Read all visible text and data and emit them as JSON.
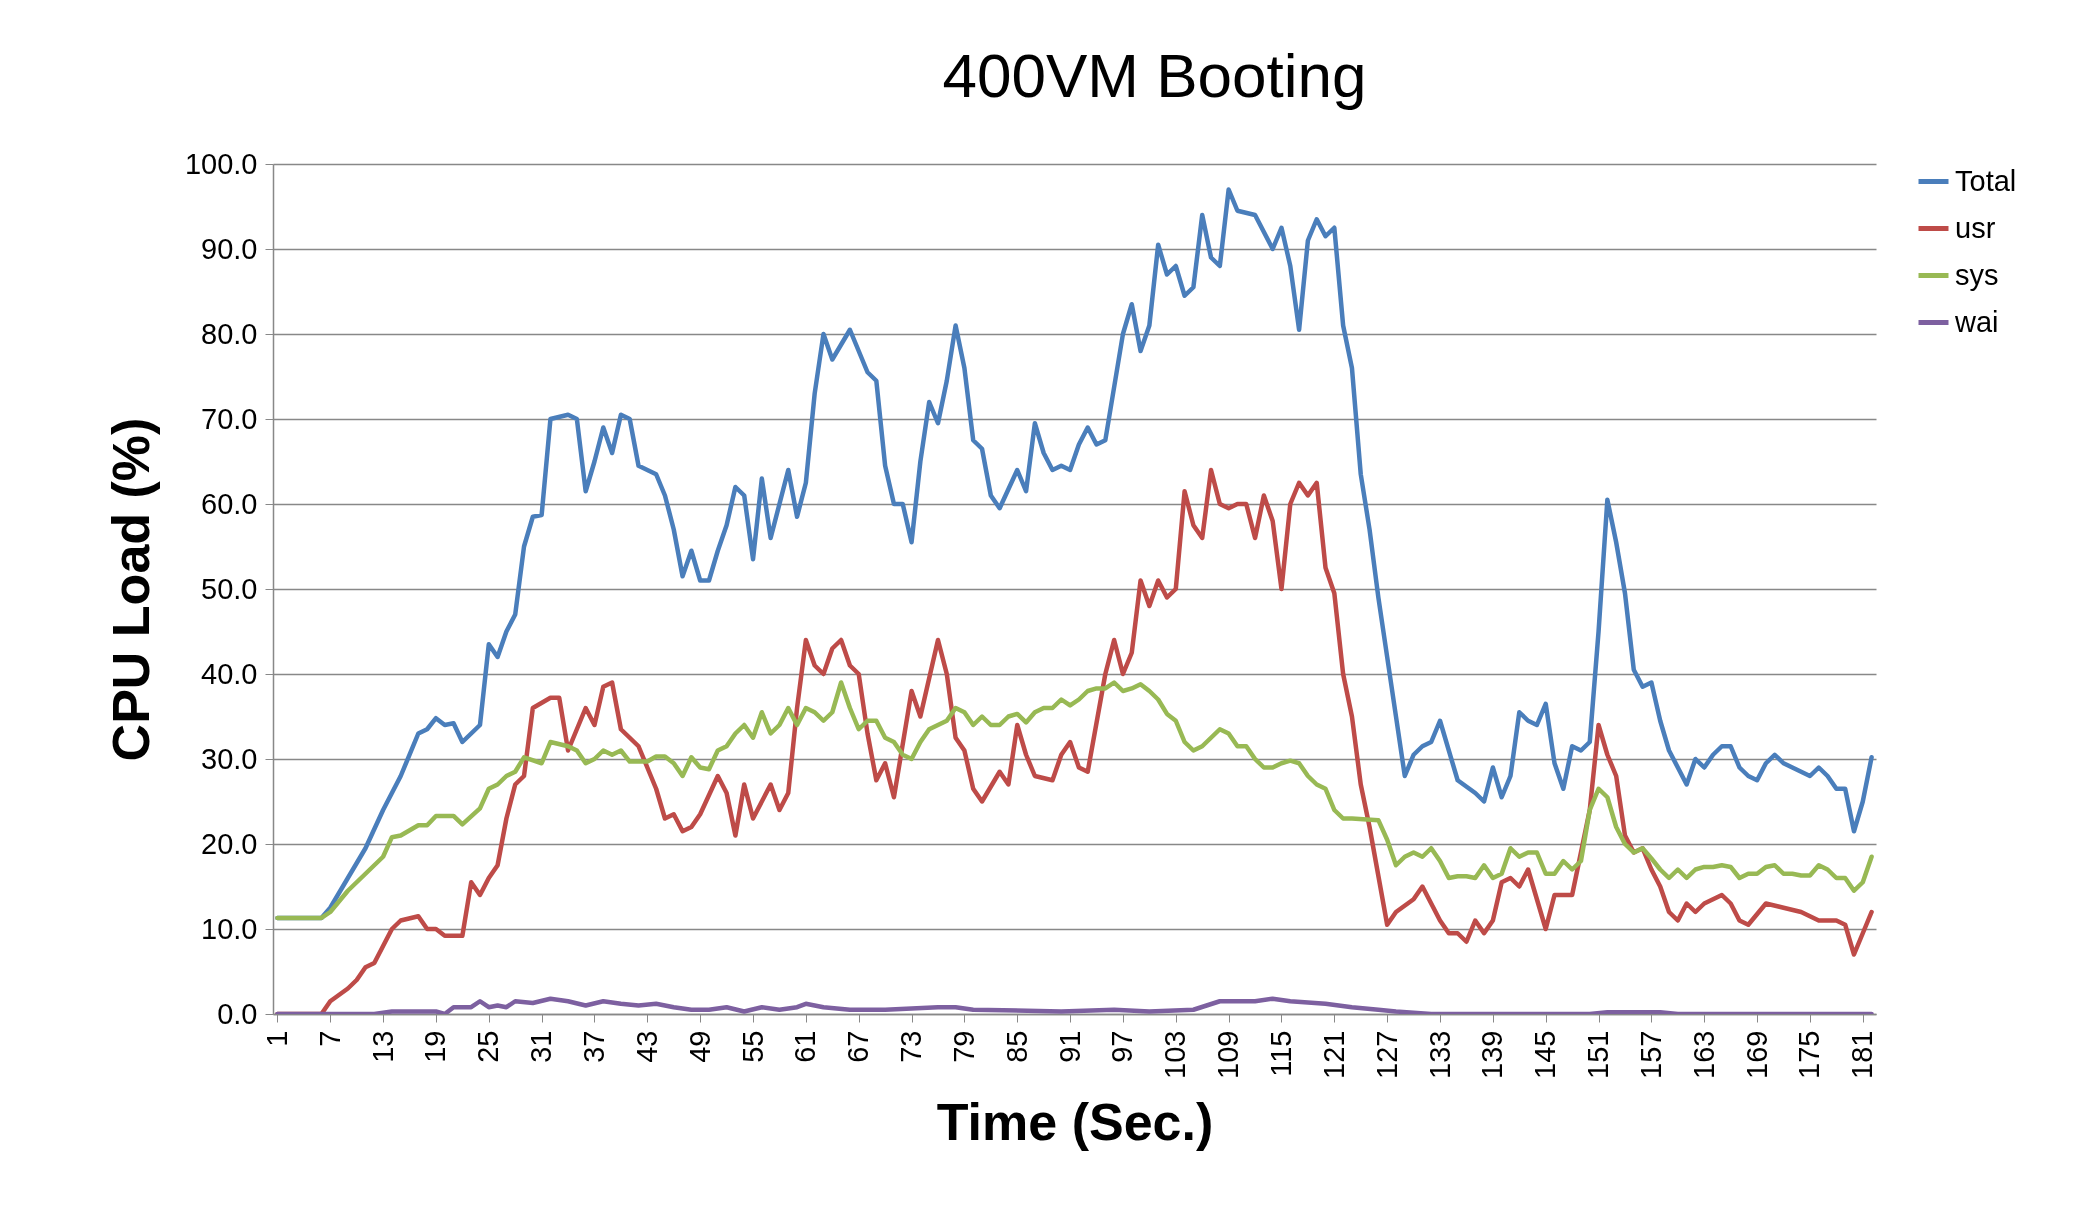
{
  "chart_data": {
    "type": "line",
    "title": "400VM Booting",
    "xlabel": "Time (Sec.)",
    "ylabel": "CPU Load (%)",
    "xlim": [
      0.5,
      182.5
    ],
    "xticks": [
      1,
      7,
      13,
      19,
      25,
      31,
      37,
      43,
      49,
      55,
      61,
      67,
      73,
      79,
      85,
      91,
      97,
      103,
      109,
      115,
      121,
      127,
      133,
      139,
      145,
      151,
      157,
      163,
      169,
      175,
      181
    ],
    "ylim": [
      0,
      100
    ],
    "yticks": [
      {
        "value": 0,
        "label": "0.0"
      },
      {
        "value": 10,
        "label": "10.0"
      },
      {
        "value": 20,
        "label": "20.0"
      },
      {
        "value": 30,
        "label": "30.0"
      },
      {
        "value": 40,
        "label": "40.0"
      },
      {
        "value": 50,
        "label": "50.0"
      },
      {
        "value": 60,
        "label": "60.0"
      },
      {
        "value": 70,
        "label": "70.0"
      },
      {
        "value": 80,
        "label": "80.0"
      },
      {
        "value": 90,
        "label": "90.0"
      },
      {
        "value": 100,
        "label": "100.0"
      }
    ],
    "grid": "y",
    "legend": "right",
    "line_style": "solid",
    "marker": "none",
    "series": [
      {
        "name": "Total",
        "color": "#4a7ebb",
        "x": [
          1,
          6,
          7,
          9,
          11,
          13,
          15,
          17,
          18,
          19,
          20,
          21,
          22,
          24,
          25,
          26,
          27,
          28,
          29,
          30,
          31,
          32,
          34,
          35,
          36,
          37,
          38,
          39,
          40,
          41,
          42,
          44,
          45,
          46,
          47,
          48,
          49,
          50,
          51,
          52,
          53,
          54,
          55,
          56,
          57,
          58,
          59,
          60,
          61,
          62,
          63,
          64,
          66,
          68,
          69,
          70,
          71,
          72,
          73,
          74,
          75,
          76,
          77,
          78,
          79,
          80,
          81,
          82,
          83,
          85,
          86,
          87,
          88,
          89,
          90,
          91,
          92,
          93,
          94,
          95,
          97,
          98,
          99,
          100,
          101,
          102,
          103,
          104,
          105,
          106,
          107,
          108,
          109,
          110,
          112,
          114,
          115,
          116,
          117,
          118,
          119,
          120,
          121,
          122,
          123,
          124,
          125,
          126,
          127,
          128,
          129,
          130,
          131,
          132,
          133,
          135,
          137,
          138,
          139,
          140,
          141,
          142,
          143,
          144,
          145,
          146,
          147,
          148,
          149,
          150,
          151,
          152,
          153,
          154,
          155,
          156,
          157,
          158,
          159,
          160,
          161,
          162,
          163,
          164,
          165,
          166,
          167,
          168,
          169,
          170,
          171,
          172,
          173,
          174,
          175,
          176,
          177,
          178,
          179,
          180,
          181,
          182
        ],
        "values": [
          11.3,
          11.3,
          12.5,
          16,
          19.5,
          24,
          28,
          33,
          33.5,
          34.8,
          34,
          34.2,
          32,
          34,
          43.5,
          42,
          45,
          47,
          55,
          58.5,
          58.7,
          70,
          70.5,
          70,
          61.5,
          65,
          69,
          66,
          70.5,
          70,
          64.5,
          63.5,
          61,
          57,
          51.5,
          54.5,
          51,
          51,
          54.5,
          57.5,
          62,
          61,
          53.5,
          63,
          56,
          60,
          64,
          58.5,
          62.5,
          73,
          80,
          77,
          80.5,
          75.5,
          74.5,
          64.5,
          60,
          60,
          55.5,
          65,
          72,
          69.5,
          74.5,
          81,
          76,
          67.5,
          66.5,
          61,
          59.5,
          64,
          61.5,
          69.5,
          66,
          64,
          64.5,
          64,
          67,
          69,
          67,
          67.5,
          80,
          83.5,
          78,
          81,
          90.5,
          87,
          88,
          84.5,
          85.5,
          94,
          89,
          88,
          97,
          94.5,
          94,
          90,
          92.5,
          88,
          80.5,
          91,
          93.5,
          91.5,
          92.5,
          81,
          76,
          63.5,
          57,
          49,
          42,
          35,
          28,
          30.5,
          31.5,
          32,
          34.5,
          27.5,
          26,
          25,
          29,
          25.5,
          28,
          35.5,
          34.5,
          34,
          36.5,
          29.5,
          26.5,
          31.5,
          31,
          32,
          45,
          60.5,
          55.5,
          49.5,
          40.5,
          38.5,
          39,
          34.5,
          31,
          29,
          27,
          30,
          29,
          30.5,
          31.5,
          31.5,
          29,
          28,
          27.5,
          29.5,
          30.5,
          29.5,
          29,
          28.5,
          28,
          29,
          28,
          26.5,
          26.5,
          21.5,
          25,
          30.2
        ]
      },
      {
        "name": "usr",
        "color": "#be4b48",
        "x": [
          1,
          6,
          7,
          9,
          10,
          11,
          12,
          13,
          14,
          15,
          17,
          18,
          19,
          20,
          22,
          23,
          24,
          25,
          26,
          27,
          28,
          29,
          30,
          32,
          33,
          34,
          36,
          37,
          38,
          39,
          40,
          42,
          43,
          44,
          45,
          46,
          47,
          48,
          49,
          51,
          52,
          53,
          54,
          55,
          57,
          58,
          59,
          60,
          61,
          62,
          63,
          64,
          65,
          66,
          67,
          68,
          69,
          70,
          71,
          73,
          74,
          76,
          77,
          78,
          79,
          80,
          81,
          83,
          84,
          85,
          86,
          87,
          89,
          90,
          91,
          92,
          93,
          95,
          96,
          97,
          98,
          99,
          100,
          101,
          102,
          103,
          104,
          105,
          106,
          107,
          108,
          109,
          110,
          111,
          112,
          113,
          114,
          115,
          116,
          117,
          118,
          119,
          120,
          121,
          122,
          123,
          124,
          125,
          127,
          128,
          130,
          131,
          133,
          134,
          135,
          136,
          137,
          138,
          139,
          140,
          141,
          142,
          143,
          145,
          146,
          148,
          150,
          151,
          152,
          153,
          154,
          155,
          156,
          157,
          158,
          159,
          160,
          161,
          162,
          163,
          165,
          166,
          167,
          168,
          170,
          172,
          174,
          175,
          176,
          178,
          179,
          180,
          181,
          182
        ],
        "values": [
          0,
          0,
          1.5,
          3,
          4,
          5.5,
          6,
          8,
          10,
          11,
          11.5,
          10,
          10,
          9.2,
          9.2,
          15.5,
          14,
          16,
          17.5,
          23,
          27,
          28,
          36,
          37.2,
          37.2,
          31,
          36,
          34,
          38.5,
          39,
          33.5,
          31.5,
          29,
          26.5,
          23,
          23.5,
          21.5,
          22,
          23.5,
          28,
          26,
          21,
          27,
          23,
          27,
          24,
          26,
          36,
          44,
          41,
          40,
          43,
          44,
          41,
          40,
          33,
          27.5,
          29.5,
          25.5,
          38,
          35,
          44,
          40,
          32.5,
          31,
          26.5,
          25,
          28.5,
          27,
          34,
          30.5,
          28,
          27.5,
          30.5,
          32,
          29,
          28.5,
          40,
          44,
          40,
          42.5,
          51,
          48,
          51,
          49,
          50,
          61.5,
          57.5,
          56,
          64,
          60,
          59.5,
          60,
          60,
          56,
          61,
          58,
          50,
          60,
          62.5,
          61,
          62.5,
          52.5,
          49.5,
          40,
          35,
          27,
          22,
          10.5,
          12,
          13.5,
          15,
          11,
          9.5,
          9.5,
          8.5,
          11,
          9.5,
          11,
          15.5,
          16,
          15,
          17,
          10,
          14,
          14,
          24,
          34,
          30.5,
          28,
          21,
          19,
          19.5,
          17,
          15,
          12,
          11,
          13,
          12,
          13,
          14,
          13,
          11,
          10.5,
          13,
          12.5,
          12,
          11.5,
          11,
          11,
          10.5,
          7,
          9.5,
          12
        ]
      },
      {
        "name": "sys",
        "color": "#98b954",
        "x": [
          1,
          6,
          7,
          9,
          11,
          13,
          14,
          15,
          17,
          18,
          19,
          21,
          22,
          24,
          25,
          26,
          27,
          28,
          29,
          31,
          32,
          34,
          35,
          36,
          37,
          38,
          39,
          40,
          41,
          43,
          44,
          45,
          46,
          47,
          48,
          49,
          50,
          51,
          52,
          53,
          54,
          55,
          56,
          57,
          58,
          59,
          60,
          61,
          62,
          63,
          64,
          65,
          66,
          67,
          68,
          69,
          70,
          71,
          72,
          73,
          74,
          75,
          76,
          77,
          78,
          79,
          80,
          81,
          82,
          83,
          84,
          85,
          86,
          87,
          88,
          89,
          90,
          91,
          92,
          93,
          94,
          95,
          96,
          97,
          98,
          99,
          100,
          101,
          102,
          103,
          104,
          105,
          106,
          107,
          108,
          109,
          110,
          111,
          112,
          113,
          114,
          115,
          116,
          117,
          118,
          119,
          120,
          121,
          122,
          123,
          126,
          127,
          128,
          129,
          130,
          131,
          132,
          133,
          134,
          135,
          136,
          137,
          138,
          139,
          140,
          141,
          142,
          143,
          144,
          145,
          146,
          147,
          148,
          149,
          150,
          151,
          152,
          153,
          154,
          155,
          156,
          157,
          158,
          159,
          160,
          161,
          162,
          163,
          164,
          165,
          166,
          167,
          168,
          169,
          170,
          171,
          172,
          173,
          174,
          175,
          176,
          177,
          178,
          179,
          180,
          181,
          182
        ],
        "values": [
          11.3,
          11.3,
          12,
          14.5,
          16.5,
          18.5,
          20.8,
          21,
          22.2,
          22.2,
          23.3,
          23.3,
          22.3,
          24.2,
          26.5,
          27,
          28,
          28.5,
          30.2,
          29.5,
          32,
          31.5,
          31,
          29.5,
          30,
          31,
          30.5,
          31,
          29.7,
          29.7,
          30.3,
          30.3,
          29.5,
          28,
          30.2,
          29,
          28.8,
          31,
          31.5,
          33,
          34,
          32.5,
          35.5,
          33,
          34,
          36,
          34,
          36,
          35.5,
          34.5,
          35.5,
          39,
          36,
          33.5,
          34.5,
          34.5,
          32.5,
          32,
          30.5,
          30,
          32,
          33.5,
          34,
          34.5,
          36,
          35.5,
          34,
          35,
          34,
          34,
          35,
          35.3,
          34.3,
          35.5,
          36,
          36,
          37,
          36.3,
          37,
          38,
          38.3,
          38.3,
          39,
          38,
          38.3,
          38.8,
          38,
          37,
          35.3,
          34.5,
          32,
          31,
          31.5,
          32.5,
          33.5,
          33,
          31.5,
          31.5,
          30,
          29,
          29,
          29.5,
          29.8,
          29.5,
          28,
          27,
          26.5,
          24,
          23,
          23,
          22.8,
          20.5,
          17.5,
          18.5,
          19,
          18.5,
          19.5,
          18,
          16,
          16.2,
          16.2,
          16,
          17.5,
          16,
          16.5,
          19.5,
          18.5,
          19,
          19,
          16.5,
          16.5,
          18,
          17,
          18,
          24,
          26.5,
          25.5,
          22,
          20,
          19,
          19.5,
          18.3,
          17,
          16,
          17,
          16,
          17,
          17.3,
          17.3,
          17.5,
          17.3,
          16,
          16.5,
          16.5,
          17.3,
          17.5,
          16.5,
          16.5,
          16.3,
          16.3,
          17.5,
          17,
          16,
          16,
          14.5,
          15.5,
          18.5
        ]
      },
      {
        "name": "wai",
        "color": "#7d60a0",
        "x": [
          1,
          12,
          14,
          16,
          18,
          19,
          20,
          21,
          23,
          24,
          25,
          26,
          27,
          28,
          30,
          32,
          34,
          36,
          38,
          40,
          42,
          44,
          46,
          48,
          50,
          52,
          54,
          56,
          58,
          60,
          61,
          63,
          66,
          70,
          76,
          78,
          80,
          90,
          96,
          100,
          105,
          108,
          112,
          114,
          116,
          120,
          123,
          126,
          128,
          132,
          150,
          152,
          158,
          160,
          182
        ],
        "values": [
          0,
          0,
          0.3,
          0.3,
          0.3,
          0.3,
          0,
          0.8,
          0.8,
          1.5,
          0.8,
          1,
          0.8,
          1.5,
          1.3,
          1.8,
          1.5,
          1,
          1.5,
          1.2,
          1,
          1.2,
          0.8,
          0.5,
          0.5,
          0.8,
          0.3,
          0.8,
          0.5,
          0.8,
          1.2,
          0.8,
          0.5,
          0.5,
          0.8,
          0.8,
          0.5,
          0.3,
          0.5,
          0.3,
          0.5,
          1.5,
          1.5,
          1.8,
          1.5,
          1.2,
          0.8,
          0.5,
          0.3,
          0,
          0,
          0.2,
          0.2,
          0,
          0
        ]
      }
    ]
  }
}
